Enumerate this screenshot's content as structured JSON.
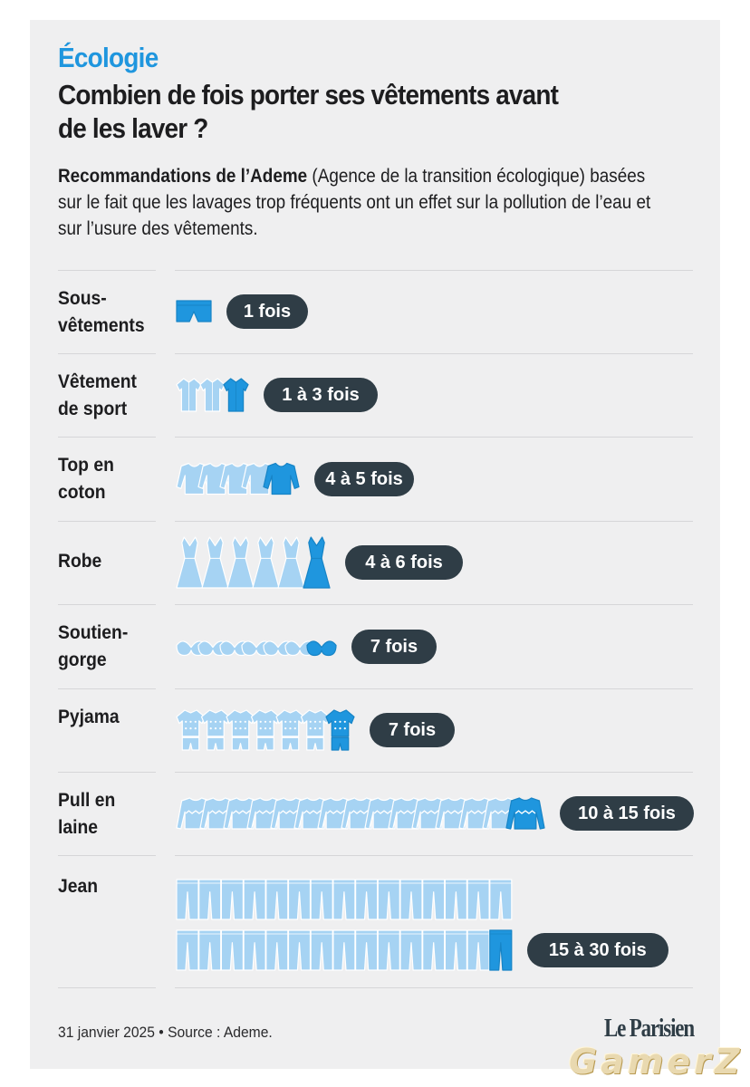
{
  "header": {
    "section": "Écologie",
    "title": "Combien de fois porter ses vêtements avant de les laver ?",
    "subtitle_bold": "Recommandations de l’Ademe",
    "subtitle_rest": " (Agence de la transition écologique) basées sur le fait que les lavages trop fréquents ont un effet sur la pollution de l’eau et sur l’usure des vêtements."
  },
  "chart_data": {
    "type": "bar",
    "mark": "pictogram",
    "categories": [
      "Sous-vêtements",
      "Vêtement de sport",
      "Top en coton",
      "Robe",
      "Soutien-gorge",
      "Pyjama",
      "Pull en laine",
      "Jean"
    ],
    "min_wears": [
      1,
      1,
      4,
      4,
      7,
      7,
      10,
      15
    ],
    "max_wears": [
      1,
      3,
      5,
      6,
      7,
      7,
      15,
      30
    ],
    "icon_count": [
      1,
      3,
      5,
      6,
      7,
      7,
      15,
      30
    ],
    "value_labels": [
      "1 fois",
      "1 à 3 fois",
      "4 à 5 fois",
      "4 à 6 fois",
      "7 fois",
      "7 fois",
      "10 à 15 fois",
      "15 à 30 fois"
    ],
    "icons": [
      "underwear-icon",
      "sport-shirt-icon",
      "cotton-top-icon",
      "dress-icon",
      "bra-icon",
      "pyjama-icon",
      "wool-sweater-icon",
      "jeans-icon"
    ]
  },
  "footer": {
    "note": "31 janvier 2025 • Source : Ademe.",
    "logo": "Le Parisien"
  },
  "watermark": "GamerZ",
  "colors": {
    "background": "#efeff0",
    "section": "#1f96de",
    "icon_light": "#a6d3f3",
    "icon_dark": "#1f96de",
    "pill": "#2f3d46"
  }
}
